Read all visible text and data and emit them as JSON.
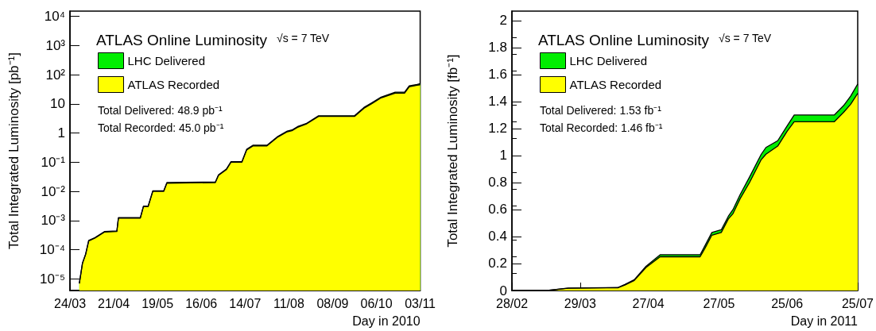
{
  "chart_data": [
    {
      "type": "area",
      "title": "ATLAS Online Luminosity",
      "xlabel": "Day in 2010",
      "ylabel": "Total Integrated Luminosity [pb⁻¹]",
      "annotations": [
        "√s = 7 TeV",
        "Total Delivered: 48.9 pb⁻¹",
        "Total Recorded: 45.0 pb⁻¹"
      ],
      "x": [
        "--03-30",
        "--04-01",
        "--04-03",
        "--04-05",
        "--04-09",
        "--04-15",
        "--04-23",
        "--04-24",
        "--05-08",
        "--05-10",
        "--05-13",
        "--05-16",
        "--05-23",
        "--05-25",
        "--06-25",
        "--06-27",
        "--07-02",
        "--07-05",
        "--07-12",
        "--07-15",
        "--07-19",
        "--07-28",
        "--08-04",
        "--08-10",
        "--08-13",
        "--08-17",
        "--08-22",
        "--08-30",
        "--09-22",
        "--09-28",
        "--10-03",
        "--10-09",
        "--10-18",
        "--10-24",
        "--10-27",
        "--11-01",
        "--11-03"
      ],
      "series": [
        {
          "name": "LHC Delivered",
          "color": "#00ee00",
          "values": [
            7e-06,
            3.5e-05,
            7e-05,
            0.00021,
            0.00026,
            0.00042,
            0.00044,
            0.00125,
            0.00125,
            0.0031,
            0.0031,
            0.0105,
            0.0105,
            0.02,
            0.021,
            0.037,
            0.058,
            0.105,
            0.105,
            0.275,
            0.38,
            0.38,
            0.77,
            1.16,
            1.27,
            1.7,
            2.1,
            3.9,
            3.9,
            7.5,
            10.8,
            17,
            25,
            25,
            41,
            46,
            48.9
          ]
        },
        {
          "name": "ATLAS Recorded",
          "color": "#ffff00",
          "values": [
            7e-06,
            3.4e-05,
            6.8e-05,
            0.0002,
            0.00025,
            0.0004,
            0.00042,
            0.0012,
            0.0012,
            0.003,
            0.003,
            0.01,
            0.01,
            0.019,
            0.02,
            0.035,
            0.055,
            0.1,
            0.1,
            0.26,
            0.36,
            0.36,
            0.73,
            1.1,
            1.2,
            1.6,
            2,
            3.7,
            3.7,
            7,
            10,
            16,
            23,
            23,
            38,
            43,
            45
          ]
        }
      ],
      "xlim": [
        "--03-24",
        "--11-03"
      ],
      "xticks": [
        {
          "value": "--03-24",
          "label": "24/03"
        },
        {
          "value": "--04-21",
          "label": "21/04"
        },
        {
          "value": "--05-19",
          "label": "19/05"
        },
        {
          "value": "--06-16",
          "label": "16/06"
        },
        {
          "value": "--07-14",
          "label": "14/07"
        },
        {
          "value": "--08-11",
          "label": "11/08"
        },
        {
          "value": "--09-08",
          "label": "08/09"
        },
        {
          "value": "--10-06",
          "label": "06/10"
        },
        {
          "value": "--11-03",
          "label": "03/11"
        }
      ],
      "log": "y",
      "ylim": [
        4e-06,
        15000
      ],
      "yticks": [
        {
          "value": 1e-05,
          "label": "10⁻⁵"
        },
        {
          "value": 0.0001,
          "label": "10⁻⁴"
        },
        {
          "value": 0.001,
          "label": "10⁻³"
        },
        {
          "value": 0.01,
          "label": "10⁻²"
        },
        {
          "value": 0.1,
          "label": "10⁻¹"
        },
        1,
        10,
        {
          "value": 100,
          "label": "10²"
        },
        {
          "value": 1000,
          "label": "10³"
        },
        {
          "value": 10000,
          "label": "10⁴"
        }
      ],
      "grid": false,
      "legend": "top left",
      "marker": "none"
    },
    {
      "type": "area",
      "title": "ATLAS Online Luminosity",
      "xlabel": "Day in 2011",
      "ylabel": "Total Integrated Luminosity [fb⁻¹]",
      "annotations": [
        "√s = 7 TeV",
        "Total Delivered: 1.53 fb⁻¹",
        "Total Recorded: 1.46 fb⁻¹"
      ],
      "x": [
        "--02-28",
        "--03-15",
        "--03-24",
        "--04-14",
        "--04-17",
        "--04-21",
        "--04-26",
        "--05-02",
        "--05-19",
        "--05-21",
        "--05-24",
        "--05-28",
        "--05-31",
        "--06-02",
        "--06-05",
        "--06-09",
        "--06-14",
        "--06-16",
        "--06-21",
        "--06-25",
        "--06-28",
        "--07-15",
        "--07-19",
        "--07-22",
        "--07-25"
      ],
      "series": [
        {
          "name": "LHC Delivered",
          "color": "#00ee00",
          "values": [
            0,
            0,
            0.018,
            0.022,
            0.045,
            0.08,
            0.18,
            0.265,
            0.265,
            0.33,
            0.43,
            0.45,
            0.55,
            0.6,
            0.71,
            0.84,
            1.01,
            1.06,
            1.11,
            1.22,
            1.3,
            1.3,
            1.37,
            1.44,
            1.53
          ]
        },
        {
          "name": "ATLAS Recorded",
          "color": "#ffff00",
          "values": [
            0,
            0,
            0.017,
            0.02,
            0.04,
            0.074,
            0.17,
            0.25,
            0.25,
            0.31,
            0.41,
            0.43,
            0.53,
            0.57,
            0.68,
            0.8,
            0.97,
            1.01,
            1.07,
            1.18,
            1.25,
            1.25,
            1.32,
            1.38,
            1.46
          ]
        }
      ],
      "xlim": [
        "--02-28",
        "--07-25"
      ],
      "xticks": [
        {
          "value": "--02-28",
          "label": "28/02"
        },
        {
          "value": "--03-29",
          "label": "29/03"
        },
        {
          "value": "--04-27",
          "label": "27/04"
        },
        {
          "value": "--05-27",
          "label": "27/05"
        },
        {
          "value": "--06-25",
          "label": "25/06"
        },
        {
          "value": "--07-25",
          "label": "25/07"
        }
      ],
      "ylim": [
        0,
        2.07
      ],
      "yticks": [
        0,
        0.2,
        0.4,
        0.6,
        0.8,
        1,
        1.2,
        1.4,
        1.6,
        1.8,
        2
      ],
      "grid": false,
      "legend": "top left",
      "marker": "none"
    }
  ]
}
